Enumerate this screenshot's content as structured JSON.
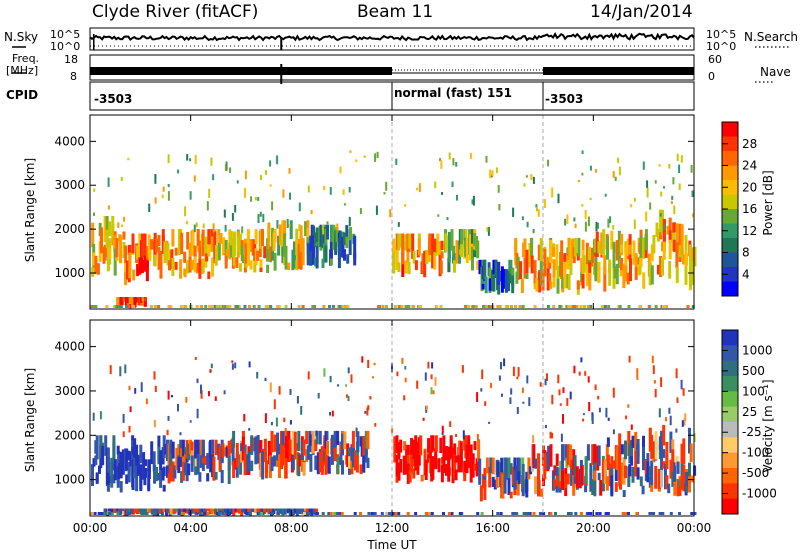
{
  "header": {
    "radar_title": "Clyde River (fitACF)",
    "beam": "Beam 11",
    "date": "14/Jan/2014"
  },
  "noise_panel": {
    "left_label": "N.Sky",
    "right_label": "N.Search",
    "left_ticks": [
      "10^5",
      "10^0"
    ],
    "right_ticks": [
      "10^5",
      "10^0"
    ]
  },
  "freq_panel": {
    "left_label_line1": "Freq.",
    "left_label_line2": "[MHz]",
    "right_label": "Nave",
    "left_ticks": [
      "18",
      "8"
    ],
    "right_ticks": [
      "60",
      "0"
    ]
  },
  "cpid": {
    "label": "CPID",
    "segments": [
      {
        "start_hour": 0,
        "end_hour": 12,
        "text": "-3503"
      },
      {
        "start_hour": 12,
        "end_hour": 18,
        "text": "normal (fast) 151"
      },
      {
        "start_hour": 18,
        "end_hour": 24,
        "text": "-3503"
      }
    ]
  },
  "chart_data": [
    {
      "type": "heatmap",
      "name": "Power",
      "ylabel": "Slant Range [km]",
      "xlabel": "Time UT",
      "xlim": [
        0,
        24
      ],
      "ylim": [
        180,
        4600
      ],
      "xticks": [
        "00:00",
        "04:00",
        "08:00",
        "12:00",
        "16:00",
        "20:00",
        "00:00"
      ],
      "yticks": [
        1000,
        2000,
        3000,
        4000
      ],
      "colorbar": {
        "label": "Power [dB]",
        "ticks": [
          "28",
          "24",
          "20",
          "16",
          "12",
          "8",
          "4"
        ],
        "colors": [
          "#ff0000",
          "#ff3300",
          "#ff6600",
          "#ff9900",
          "#ffbb00",
          "#c8c800",
          "#66aa33",
          "#339966",
          "#1f7755",
          "#1f5599",
          "#2233cc",
          "#0000ff"
        ]
      },
      "bands": [
        {
          "start_hour": 0.0,
          "end_hour": 1.3,
          "range_low": 900,
          "range_high": 2300,
          "level": 20
        },
        {
          "start_hour": 1.3,
          "end_hour": 2.3,
          "range_low": 700,
          "range_high": 1900,
          "level": 24
        },
        {
          "start_hour": 2.3,
          "end_hour": 5.0,
          "range_low": 850,
          "range_high": 2000,
          "level": 22
        },
        {
          "start_hour": 5.0,
          "end_hour": 7.0,
          "range_low": 950,
          "range_high": 2000,
          "level": 20
        },
        {
          "start_hour": 7.0,
          "end_hour": 8.6,
          "range_low": 1050,
          "range_high": 2200,
          "level": 18
        },
        {
          "start_hour": 8.6,
          "end_hour": 10.5,
          "range_low": 1100,
          "range_high": 2100,
          "level": 10
        },
        {
          "start_hour": 12.0,
          "end_hour": 14.0,
          "range_low": 900,
          "range_high": 1900,
          "level": 22
        },
        {
          "start_hour": 14.0,
          "end_hour": 15.4,
          "range_low": 1000,
          "range_high": 2000,
          "level": 16
        },
        {
          "start_hour": 15.4,
          "end_hour": 16.8,
          "range_low": 500,
          "range_high": 1300,
          "level": 8
        },
        {
          "start_hour": 16.8,
          "end_hour": 20.0,
          "range_low": 500,
          "range_high": 1800,
          "level": 20
        },
        {
          "start_hour": 20.0,
          "end_hour": 22.4,
          "range_low": 550,
          "range_high": 2000,
          "level": 20
        },
        {
          "start_hour": 22.4,
          "end_hour": 24.0,
          "range_low": 600,
          "range_high": 2500,
          "level": 22
        },
        {
          "start_hour": 1.0,
          "end_hour": 2.2,
          "range_low": 180,
          "range_high": 450,
          "level": 26
        }
      ]
    },
    {
      "type": "heatmap",
      "name": "Velocity",
      "ylabel": "Slant Range [km]",
      "xlabel": "Time UT",
      "xlim": [
        0,
        24
      ],
      "ylim": [
        180,
        4600
      ],
      "xticks": [
        "00:00",
        "04:00",
        "08:00",
        "12:00",
        "16:00",
        "20:00",
        "00:00"
      ],
      "yticks": [
        1000,
        2000,
        3000,
        4000
      ],
      "colorbar": {
        "label": "Velocity [m s⁻¹]",
        "ticks": [
          "1000",
          "500",
          "100",
          "25",
          "-25",
          "-100",
          "-500",
          "-1000"
        ],
        "colors": [
          "#2233bb",
          "#3355aa",
          "#2f6f7f",
          "#3a8f60",
          "#66bb44",
          "#99cc66",
          "#bbbbbb",
          "#ffcc66",
          "#ff9933",
          "#ff6600",
          "#ff3300",
          "#ff0000"
        ]
      },
      "bands": [
        {
          "start_hour": 0.0,
          "end_hour": 3.0,
          "range_low": 700,
          "range_high": 2000,
          "level": 500
        },
        {
          "start_hour": 3.0,
          "end_hour": 5.5,
          "range_low": 900,
          "range_high": 1900,
          "level": 100
        },
        {
          "start_hour": 5.5,
          "end_hour": 8.5,
          "range_low": 1000,
          "range_high": 2100,
          "level": -100
        },
        {
          "start_hour": 8.5,
          "end_hour": 11.0,
          "range_low": 1100,
          "range_high": 2100,
          "level": 25
        },
        {
          "start_hour": 12.0,
          "end_hour": 15.4,
          "range_low": 900,
          "range_high": 2000,
          "level": -500
        },
        {
          "start_hour": 15.4,
          "end_hour": 17.5,
          "range_low": 500,
          "range_high": 1500,
          "level": 100
        },
        {
          "start_hour": 17.5,
          "end_hour": 20.5,
          "range_low": 600,
          "range_high": 1800,
          "level": -100
        },
        {
          "start_hour": 20.5,
          "end_hour": 24.0,
          "range_low": 600,
          "range_high": 2300,
          "level": 100
        },
        {
          "start_hour": 0.5,
          "end_hour": 9.0,
          "range_low": 180,
          "range_high": 350,
          "level": 100
        }
      ]
    }
  ]
}
